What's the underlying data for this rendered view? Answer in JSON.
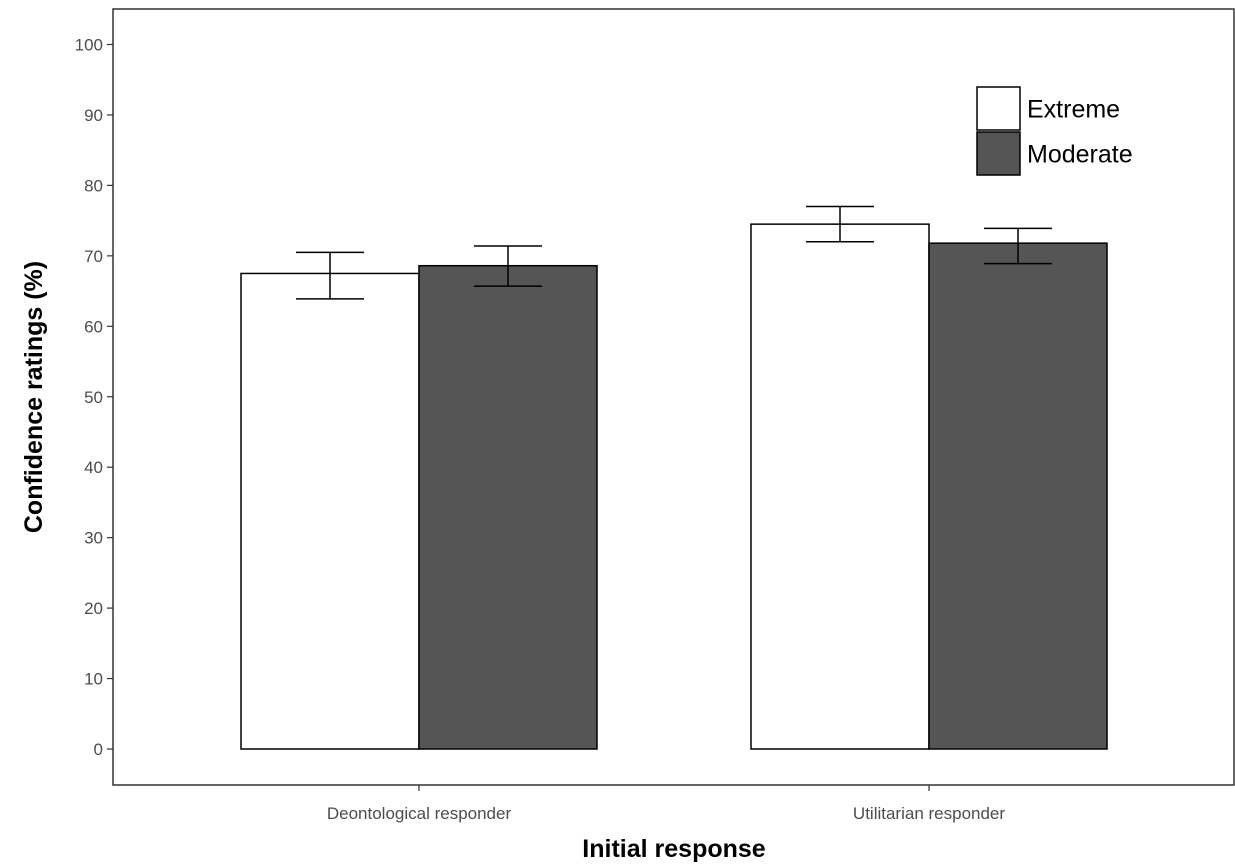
{
  "chart_data": {
    "type": "bar",
    "categories": [
      "Deontological responder",
      "Utilitarian responder"
    ],
    "series": [
      {
        "name": "Extreme",
        "values": [
          67.5,
          74.5
        ],
        "error_low": [
          63.9,
          72.0
        ],
        "error_high": [
          70.5,
          77.0
        ],
        "color": "#ffffff"
      },
      {
        "name": "Moderate",
        "values": [
          68.6,
          71.8
        ],
        "error_low": [
          65.7,
          68.9
        ],
        "error_high": [
          71.4,
          73.9
        ],
        "color": "#555555"
      }
    ],
    "xlabel": "Initial response",
    "ylabel": "Confidence ratings (%)",
    "ylim": [
      -5,
      105
    ],
    "yticks": [
      0,
      10,
      20,
      30,
      40,
      50,
      60,
      70,
      80,
      90,
      100
    ],
    "grid": false,
    "legend_position": "top-right",
    "error_bars": true
  }
}
